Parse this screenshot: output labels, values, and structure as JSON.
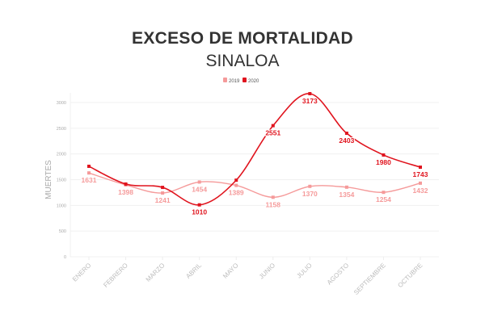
{
  "chart_data": {
    "type": "line",
    "title": "EXCESO DE MORTALIDAD",
    "subtitle": "SINALOA",
    "xlabel": "",
    "ylabel": "MUERTES",
    "ylim": [
      0,
      3000
    ],
    "yticks": [
      0,
      500,
      1000,
      1500,
      2000,
      2500,
      3000
    ],
    "grid": true,
    "legend_placement": "top-center",
    "categories": [
      "ENERO",
      "FEBRERO",
      "MARZO",
      "ABRIL",
      "MAYO",
      "JUNIO",
      "JULIO",
      "AGOSTO",
      "SEPTIEMBRE",
      "OCTUBRE"
    ],
    "series": [
      {
        "name": "2019",
        "color": "#f59a9a",
        "values": [
          1631,
          1398,
          1241,
          1454,
          1389,
          1158,
          1370,
          1354,
          1254,
          1432
        ],
        "labeled": [
          true,
          true,
          true,
          true,
          true,
          true,
          true,
          true,
          true,
          true
        ]
      },
      {
        "name": "2020",
        "color": "#e0141e",
        "values": [
          1760,
          1415,
          1350,
          1010,
          1490,
          2551,
          3173,
          2403,
          1980,
          1743
        ],
        "labeled": [
          false,
          false,
          false,
          true,
          false,
          true,
          true,
          true,
          true,
          true
        ]
      }
    ]
  }
}
